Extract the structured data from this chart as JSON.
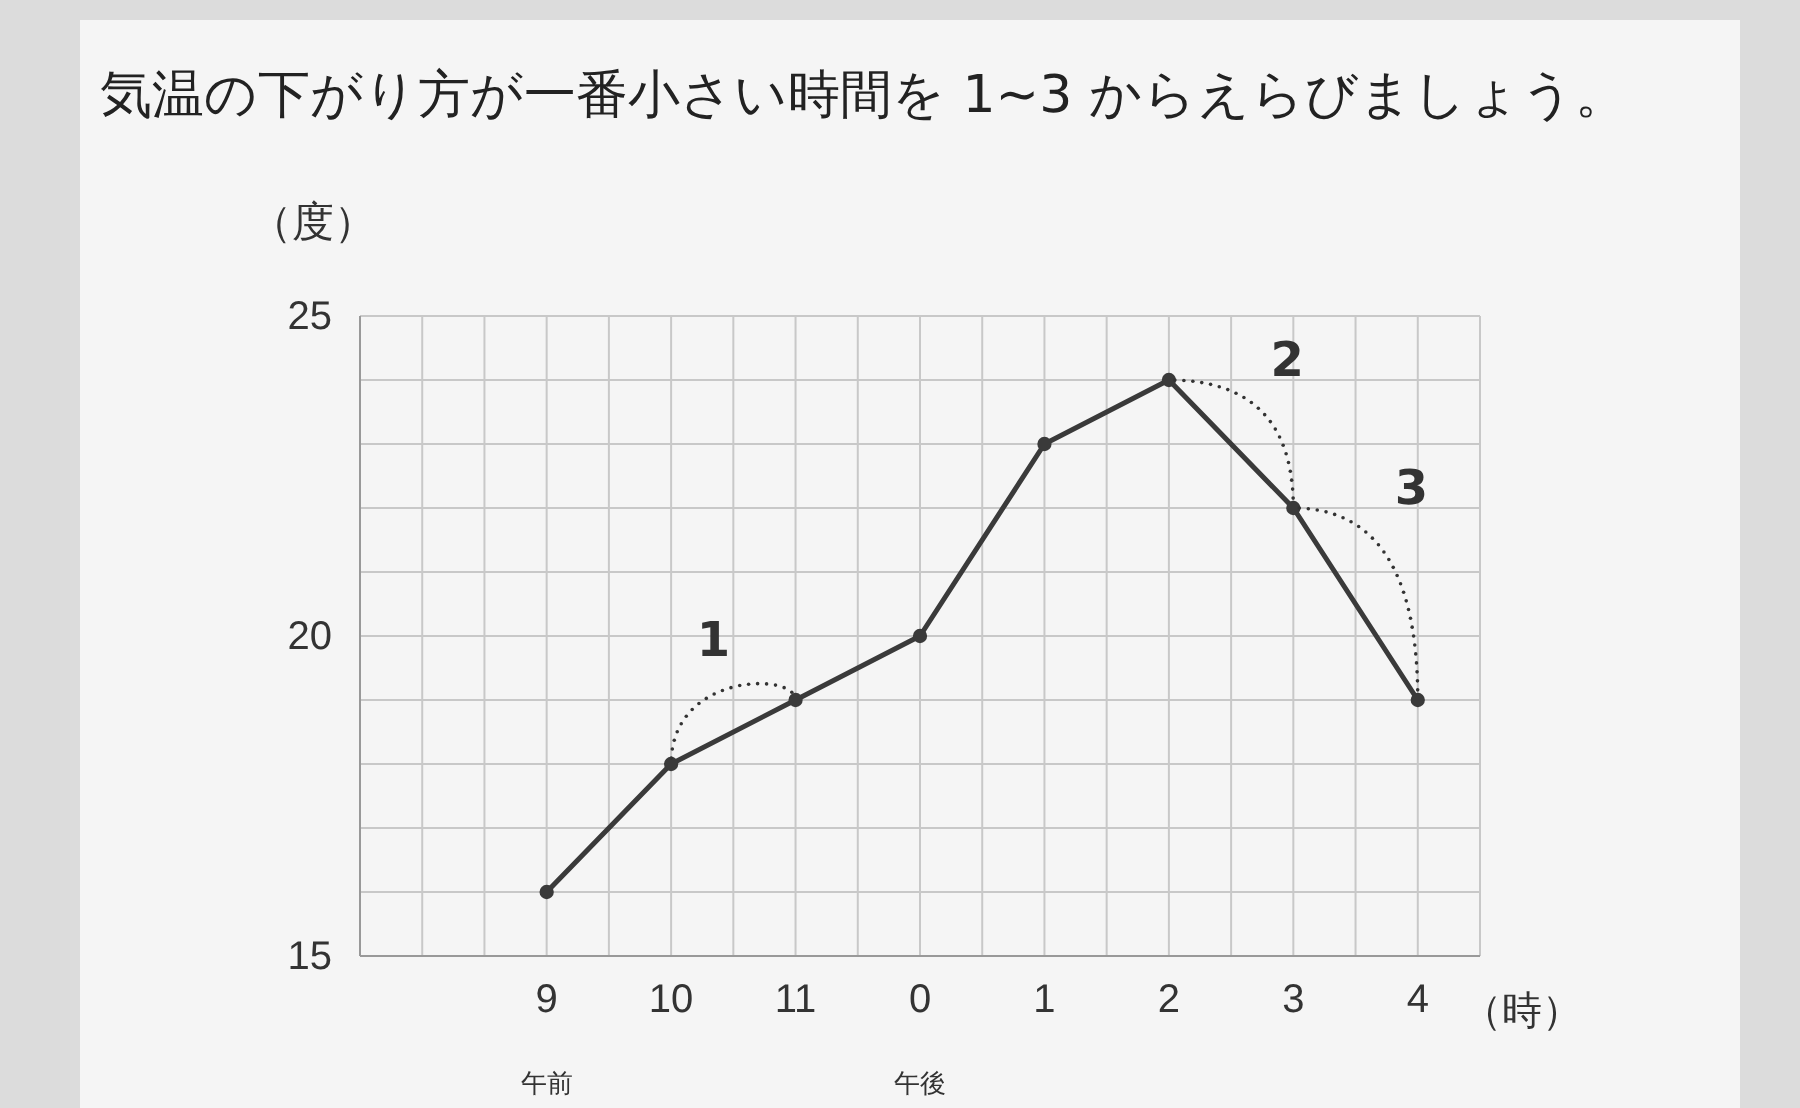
{
  "chart_data": {
    "type": "line",
    "title": "気温の下がり方が一番小さい時間を 1~3 からえらびましょう。",
    "ylabel": "（度）",
    "xlabel": "（時）",
    "categories": [
      "9",
      "10",
      "11",
      "0",
      "1",
      "2",
      "3",
      "4"
    ],
    "series": [
      {
        "color": "#3a3a3a",
        "values": [
          16,
          18,
          19,
          20,
          23,
          24,
          22,
          19
        ]
      }
    ],
    "ylim": [
      15,
      25
    ],
    "yticks": [
      15,
      20,
      25
    ],
    "grid": true,
    "marker": "circle",
    "line_style": "solid",
    "annotations": [
      {
        "text": "1",
        "x": "10",
        "y": 18
      },
      {
        "text": "2",
        "x": "2",
        "y": 24
      },
      {
        "text": "3",
        "x": "3",
        "y": 22
      },
      "午前",
      "午後"
    ]
  }
}
